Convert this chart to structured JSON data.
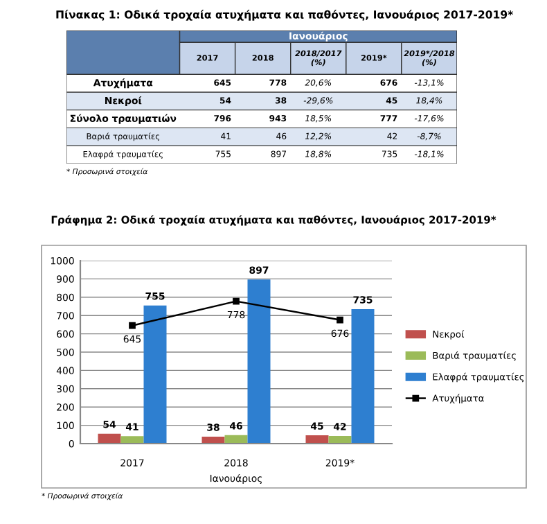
{
  "chart_data": [
    {
      "type": "other",
      "title": "Πίνακας 1: Οδικά τροχαία ατυχήματα και παθόντες, Ιανουάριος 2017-2019*",
      "subtitle": "Ιανουάριος",
      "categories": [
        "2017",
        "2018",
        "2018/2017\n(%)",
        "2019*",
        "2019*/2018\n(%)"
      ],
      "y_categories": [
        "Ατυχήματα",
        "Νεκροί",
        "Σύνολο τραυματιών",
        "Βαριά τραυματίες",
        "Ελαφρά τραυματίες"
      ],
      "cell_labels": [
        [
          "645",
          "778",
          "20,6%",
          "676",
          "-13,1%"
        ],
        [
          "54",
          "38",
          "-29,6%",
          "45",
          "18,4%"
        ],
        [
          "796",
          "943",
          "18,5%",
          "777",
          "-17,6%"
        ],
        [
          "41",
          "46",
          "12,2%",
          "42",
          "-8,7%"
        ],
        [
          "755",
          "897",
          "18,8%",
          "735",
          "-18,1%"
        ]
      ],
      "annotations": [
        "* Προσωρινά στοιχεία"
      ]
    },
    {
      "type": "bar",
      "title": "Γράφημα 2: Οδικά τροχαία ατυχήματα και παθόντες, Ιανουάριος 2017-2019*",
      "xlabel": "Ιανουάριος",
      "categories": [
        "2017",
        "2018",
        "2019*"
      ],
      "series": [
        {
          "name": "Νεκροί",
          "color": "#c0504d",
          "values": [
            54,
            38,
            45
          ]
        },
        {
          "name": "Βαριά τραυματίες",
          "color": "#9bbb59",
          "values": [
            41,
            46,
            42
          ]
        },
        {
          "name": "Ελαφρά τραυματίες",
          "color": "#2e7fd0",
          "values": [
            755,
            897,
            735
          ]
        },
        {
          "name": "Ατυχήματα",
          "type": "line",
          "color": "#000000",
          "values": [
            645,
            778,
            676
          ],
          "marker": "square"
        }
      ],
      "ylim": [
        0,
        1000
      ],
      "yticks": [
        0,
        100,
        200,
        300,
        400,
        500,
        600,
        700,
        800,
        900,
        1000
      ],
      "grid": "y",
      "legend": "right",
      "data_labels": true,
      "annotations": [
        "* Προσωρινά στοιχεία"
      ]
    }
  ]
}
